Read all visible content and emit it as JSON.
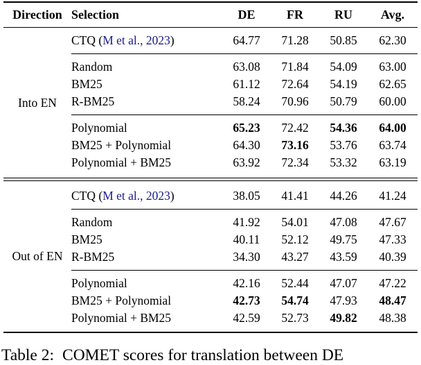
{
  "theme": {
    "citation_color": "#1a1a8c",
    "rule_color": "#000000",
    "background": "#ffffff"
  },
  "header": {
    "columns": [
      "Direction",
      "Selection",
      "DE",
      "FR",
      "RU",
      "Avg."
    ]
  },
  "blocks": [
    {
      "direction": "Into EN",
      "groups": [
        [
          {
            "sel_pre": "CTQ (",
            "cite": "M et al., 2023",
            "sel_post": ")",
            "vals": [
              "64.77",
              "71.28",
              "50.85",
              "62.30"
            ],
            "bold": [
              0,
              0,
              0,
              0
            ]
          }
        ],
        [
          {
            "sel": "Random",
            "vals": [
              "63.08",
              "71.84",
              "54.09",
              "63.00"
            ],
            "bold": [
              0,
              0,
              0,
              0
            ]
          },
          {
            "sel": "BM25",
            "vals": [
              "61.12",
              "72.64",
              "54.19",
              "62.65"
            ],
            "bold": [
              0,
              0,
              0,
              0
            ]
          },
          {
            "sel": "R-BM25",
            "vals": [
              "58.24",
              "70.96",
              "50.79",
              "60.00"
            ],
            "bold": [
              0,
              0,
              0,
              0
            ]
          }
        ],
        [
          {
            "sel": "Polynomial",
            "vals": [
              "65.23",
              "72.42",
              "54.36",
              "64.00"
            ],
            "bold": [
              1,
              0,
              1,
              1
            ]
          },
          {
            "sel": "BM25 + Polynomial",
            "vals": [
              "64.30",
              "73.16",
              "53.76",
              "63.74"
            ],
            "bold": [
              0,
              1,
              0,
              0
            ]
          },
          {
            "sel": "Polynomial + BM25",
            "vals": [
              "63.92",
              "72.34",
              "53.32",
              "63.19"
            ],
            "bold": [
              0,
              0,
              0,
              0
            ]
          }
        ]
      ]
    },
    {
      "direction": "Out of EN",
      "groups": [
        [
          {
            "sel_pre": "CTQ (",
            "cite": "M et al., 2023",
            "sel_post": ")",
            "vals": [
              "38.05",
              "41.41",
              "44.26",
              "41.24"
            ],
            "bold": [
              0,
              0,
              0,
              0
            ]
          }
        ],
        [
          {
            "sel": "Random",
            "vals": [
              "41.92",
              "54.01",
              "47.08",
              "47.67"
            ],
            "bold": [
              0,
              0,
              0,
              0
            ]
          },
          {
            "sel": "BM25",
            "vals": [
              "40.11",
              "52.12",
              "49.75",
              "47.33"
            ],
            "bold": [
              0,
              0,
              0,
              0
            ]
          },
          {
            "sel": "R-BM25",
            "vals": [
              "34.30",
              "43.27",
              "43.59",
              "40.39"
            ],
            "bold": [
              0,
              0,
              0,
              0
            ]
          }
        ],
        [
          {
            "sel": "Polynomial",
            "vals": [
              "42.16",
              "52.44",
              "47.07",
              "47.22"
            ],
            "bold": [
              0,
              0,
              0,
              0
            ]
          },
          {
            "sel": "BM25 + Polynomial",
            "vals": [
              "42.73",
              "54.74",
              "47.93",
              "48.47"
            ],
            "bold": [
              1,
              1,
              0,
              1
            ]
          },
          {
            "sel": "Polynomial + BM25",
            "vals": [
              "42.59",
              "52.73",
              "49.82",
              "48.38"
            ],
            "bold": [
              0,
              0,
              1,
              0
            ]
          }
        ]
      ]
    }
  ],
  "caption": {
    "label": "Table 2:",
    "text": "COMET scores for translation between DE"
  }
}
